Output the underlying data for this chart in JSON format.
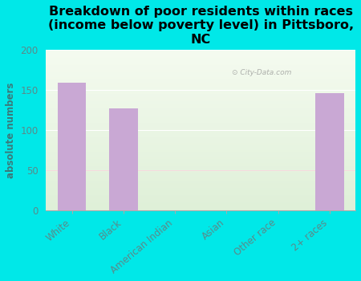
{
  "title": "Breakdown of poor residents within races\n(income below poverty level) in Pittsboro,\nNC",
  "categories": [
    "White",
    "Black",
    "American Indian",
    "Asian",
    "Other race",
    "2+ races"
  ],
  "values": [
    159,
    127,
    0,
    0,
    0,
    146
  ],
  "bar_color": "#c9a8d4",
  "background_color": "#00e8e8",
  "plot_bg_colors": [
    "#f5fbf0",
    "#dff0d8"
  ],
  "ylabel": "absolute numbers",
  "ylim": [
    0,
    200
  ],
  "yticks": [
    0,
    50,
    100,
    150,
    200
  ],
  "title_fontsize": 11.5,
  "tick_fontsize": 8.5,
  "ylabel_fontsize": 8.5,
  "tick_color": "#5a8a8a",
  "ylabel_color": "#3a7a7a",
  "watermark": "City-Data.com",
  "bar_width": 0.55
}
